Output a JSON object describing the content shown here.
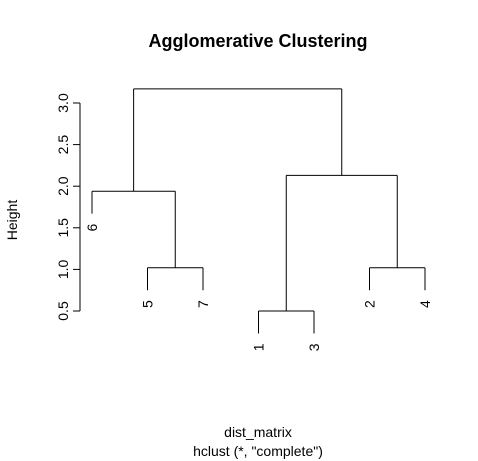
{
  "chart_data": {
    "type": "dendrogram",
    "title": "Agglomerative Clustering",
    "ylabel": "Height",
    "xlabel": "dist_matrix",
    "sublabel": "hclust (*, \"complete\")",
    "ylim": [
      0.5,
      3.2
    ],
    "yticks": [
      0.5,
      1.0,
      1.5,
      2.0,
      2.5,
      3.0
    ],
    "ytick_labels": [
      "0.5",
      "1.0",
      "1.5",
      "2.0",
      "2.5",
      "3.0"
    ],
    "leaf_order": [
      "6",
      "5",
      "7",
      "1",
      "3",
      "2",
      "4"
    ],
    "merges": [
      {
        "left": "1",
        "right": "3",
        "height": 0.5
      },
      {
        "left": "5",
        "right": "7",
        "height": 1.02
      },
      {
        "left": "2",
        "right": "4",
        "height": 1.02
      },
      {
        "left": "6",
        "right": "(5,7)",
        "height": 1.94
      },
      {
        "left": "(1,3)",
        "right": "(2,4)",
        "height": 2.13
      },
      {
        "left": "(6,5,7)",
        "right": "(1,3,2,4)",
        "height": 3.17
      }
    ]
  }
}
